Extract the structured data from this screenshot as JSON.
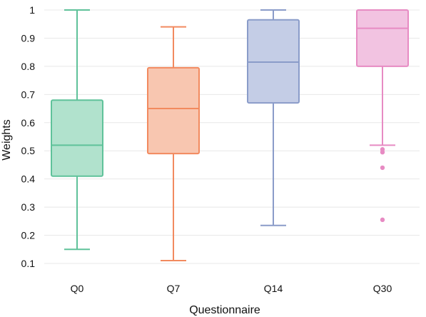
{
  "chart_data": {
    "type": "box",
    "title": "",
    "xlabel": "Questionnaire",
    "ylabel": "Weights",
    "ylim": [
      0.1,
      1.0
    ],
    "y_ticks": [
      "0.1",
      "0.2",
      "0.3",
      "0.4",
      "0.5",
      "0.6",
      "0.7",
      "0.8",
      "0.9",
      "1"
    ],
    "grid": "horizontal",
    "legend": "none",
    "categories": [
      "Q0",
      "Q7",
      "Q14",
      "Q30"
    ],
    "boxes": [
      {
        "category": "Q0",
        "color": "#5fc29a",
        "fill": "#b1e2cd",
        "whisker_low": 0.15,
        "q1": 0.41,
        "median": 0.52,
        "q3": 0.68,
        "whisker_high": 1.0,
        "outliers": []
      },
      {
        "category": "Q7",
        "color": "#f28a5f",
        "fill": "#f8c6b0",
        "whisker_low": 0.11,
        "q1": 0.49,
        "median": 0.65,
        "q3": 0.795,
        "whisker_high": 0.94,
        "outliers": []
      },
      {
        "category": "Q14",
        "color": "#8a9cc9",
        "fill": "#c4cde6",
        "whisker_low": 0.235,
        "q1": 0.67,
        "median": 0.815,
        "q3": 0.965,
        "whisker_high": 1.0,
        "outliers": []
      },
      {
        "category": "Q30",
        "color": "#e78bc3",
        "fill": "#f2c3e1",
        "whisker_low": 0.52,
        "q1": 0.8,
        "median": 0.935,
        "q3": 1.0,
        "whisker_high": 1.0,
        "outliers": [
          0.505,
          0.495,
          0.44,
          0.255
        ]
      }
    ]
  }
}
